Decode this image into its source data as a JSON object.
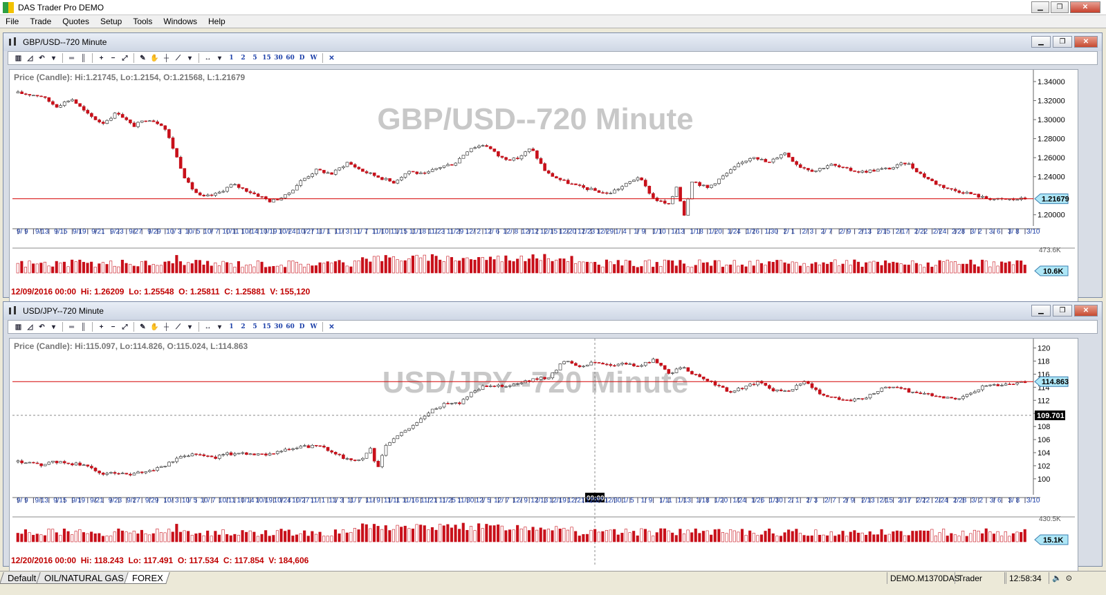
{
  "app": {
    "title": "DAS Trader Pro DEMO"
  },
  "menu": [
    "File",
    "Trade",
    "Quotes",
    "Setup",
    "Tools",
    "Windows",
    "Help"
  ],
  "toolbar": {
    "periods": [
      "1",
      "2",
      "5",
      "15",
      "30",
      "60",
      "D",
      "W"
    ]
  },
  "windows": [
    {
      "title": "GBP/USD--720 Minute",
      "watermark": "GBP/USD--720 Minute",
      "info": "Price (Candle): Hi:1.21745, Lo:1.2154, O:1.21568, L:1.21679",
      "status": "12/09/2016 00:00  Hi: 1.26209  Lo: 1.25548  O: 1.25811  C: 1.25881  V: 155,120",
      "y_ticks": [
        "1.34000",
        "1.32000",
        "1.30000",
        "1.28000",
        "1.26000",
        "1.24000",
        "1.20000"
      ],
      "y_tick_values": [
        1.34,
        1.32,
        1.3,
        1.28,
        1.26,
        1.24,
        1.2
      ],
      "y_range": [
        1.194,
        1.348
      ],
      "current_price": "1.21679",
      "current_value": 1.21679,
      "volume_max": "473.6K",
      "volume_current": "10.6K",
      "x_labels": [
        "9/ 9",
        "9/13",
        "9/15",
        "9/19",
        "9/21",
        "9/23",
        "9/27",
        "9/29",
        "10/ 3",
        "10/ 5",
        "10/ 7",
        "10/11",
        "10/14",
        "10/19",
        "10/24",
        "10/27",
        "11/ 1",
        "11/ 3",
        "11/ 7",
        "11/10",
        "11/15",
        "11/18",
        "11/23",
        "11/29",
        "12/ 2",
        "12/ 6",
        "12/ 8",
        "12/12",
        "12/15",
        "12/20",
        "12/23",
        "12/29",
        "1/ 4",
        "1/ 9",
        "1/10",
        "1/13",
        "1/18",
        "1/20",
        "1/24",
        "1/26",
        "1/30",
        "2/ 1",
        "2/ 3",
        "2/ 7",
        "2/ 9",
        "2/13",
        "2/15",
        "2/17",
        "2/22",
        "2/24",
        "2/28",
        "3/ 2",
        "3/ 6",
        "3/ 8",
        "3/10"
      ],
      "close_path": [
        [
          0,
          1.328
        ],
        [
          6,
          1.325
        ],
        [
          10,
          1.314
        ],
        [
          14,
          1.322
        ],
        [
          18,
          1.306
        ],
        [
          22,
          1.296
        ],
        [
          26,
          1.308
        ],
        [
          30,
          1.293
        ],
        [
          34,
          1.301
        ],
        [
          38,
          1.294
        ],
        [
          40,
          1.275
        ],
        [
          42,
          1.255
        ],
        [
          44,
          1.235
        ],
        [
          46,
          1.225
        ],
        [
          48,
          1.218
        ],
        [
          52,
          1.222
        ],
        [
          56,
          1.232
        ],
        [
          60,
          1.225
        ],
        [
          64,
          1.218
        ],
        [
          66,
          1.214
        ],
        [
          70,
          1.22
        ],
        [
          74,
          1.236
        ],
        [
          78,
          1.247
        ],
        [
          82,
          1.243
        ],
        [
          86,
          1.255
        ],
        [
          90,
          1.246
        ],
        [
          94,
          1.24
        ],
        [
          98,
          1.234
        ],
        [
          102,
          1.246
        ],
        [
          106,
          1.242
        ],
        [
          110,
          1.25
        ],
        [
          114,
          1.254
        ],
        [
          118,
          1.27
        ],
        [
          122,
          1.274
        ],
        [
          126,
          1.26
        ],
        [
          130,
          1.258
        ],
        [
          134,
          1.27
        ],
        [
          138,
          1.244
        ],
        [
          142,
          1.236
        ],
        [
          146,
          1.23
        ],
        [
          150,
          1.226
        ],
        [
          154,
          1.222
        ],
        [
          158,
          1.23
        ],
        [
          162,
          1.24
        ],
        [
          166,
          1.217
        ],
        [
          170,
          1.21
        ],
        [
          172,
          1.23
        ],
        [
          174,
          1.2
        ],
        [
          176,
          1.236
        ],
        [
          180,
          1.228
        ],
        [
          184,
          1.24
        ],
        [
          188,
          1.252
        ],
        [
          192,
          1.262
        ],
        [
          196,
          1.254
        ],
        [
          200,
          1.266
        ],
        [
          204,
          1.251
        ],
        [
          208,
          1.246
        ],
        [
          212,
          1.253
        ],
        [
          216,
          1.248
        ],
        [
          220,
          1.245
        ],
        [
          224,
          1.247
        ],
        [
          228,
          1.249
        ],
        [
          232,
          1.255
        ],
        [
          236,
          1.242
        ],
        [
          240,
          1.232
        ],
        [
          244,
          1.226
        ],
        [
          248,
          1.223
        ],
        [
          252,
          1.218
        ],
        [
          256,
          1.216
        ],
        [
          260,
          1.216
        ],
        [
          263,
          1.217
        ]
      ]
    },
    {
      "title": "USD/JPY--720 Minute",
      "watermark": "USD/JPY--720 Minute",
      "info": "Price (Candle): Hi:115.097, Lo:114.826, O:115.024, L:114.863",
      "status": "12/20/2016 00:00  Hi: 118.243  Lo: 117.491  O: 117.534  C: 117.854  V: 184,606",
      "y_ticks": [
        "120",
        "118",
        "116",
        "114",
        "112",
        "110",
        "108",
        "106",
        "104",
        "102",
        "100"
      ],
      "y_tick_values": [
        120,
        118,
        116,
        114,
        112,
        110,
        108,
        106,
        104,
        102,
        100
      ],
      "y_range": [
        98.4,
        120.8
      ],
      "current_price": "114.863",
      "current_value": 114.863,
      "crosshair_price": "109.701",
      "crosshair_value": 109.701,
      "crosshair_time": "00:00",
      "volume_max": "430.5K",
      "volume_current": "15.1K",
      "x_labels": [
        "9/ 9",
        "9/13",
        "9/15",
        "9/19",
        "9/21",
        "9/23",
        "9/27",
        "9/29",
        "10/ 3",
        "10/ 5",
        "10/ 7",
        "10/11",
        "10/14",
        "10/19",
        "10/24",
        "10/27",
        "11/ 1",
        "11/ 3",
        "11/ 7",
        "11/ 9",
        "11/11",
        "11/16",
        "11/21",
        "11/25",
        "11/30",
        "12/ 5",
        "12/ 7",
        "12/ 9",
        "12/13",
        "12/19",
        "12/21",
        "12/27",
        "12/30",
        "1/ 5",
        "1/ 9",
        "1/11",
        "1/13",
        "1/18",
        "1/20",
        "1/24",
        "1/26",
        "1/30",
        "2/ 1",
        "2/ 3",
        "2/ 7",
        "2/ 9",
        "2/13",
        "2/15",
        "2/17",
        "2/22",
        "2/24",
        "2/28",
        "3/ 2",
        "3/ 6",
        "3/ 8",
        "3/10"
      ],
      "close_path": [
        [
          0,
          102.6
        ],
        [
          6,
          102.1
        ],
        [
          10,
          102.6
        ],
        [
          16,
          102.2
        ],
        [
          20,
          101.7
        ],
        [
          22,
          100.6
        ],
        [
          26,
          101.0
        ],
        [
          30,
          100.6
        ],
        [
          36,
          101.4
        ],
        [
          40,
          102.2
        ],
        [
          44,
          103.6
        ],
        [
          48,
          103.9
        ],
        [
          52,
          103.2
        ],
        [
          56,
          103.8
        ],
        [
          60,
          104.0
        ],
        [
          64,
          103.6
        ],
        [
          68,
          104.0
        ],
        [
          72,
          104.4
        ],
        [
          76,
          104.9
        ],
        [
          80,
          105.0
        ],
        [
          84,
          104.2
        ],
        [
          88,
          102.9
        ],
        [
          92,
          103.0
        ],
        [
          94,
          104.8
        ],
        [
          96,
          101.2
        ],
        [
          98,
          105.0
        ],
        [
          102,
          106.8
        ],
        [
          106,
          108.4
        ],
        [
          110,
          110.2
        ],
        [
          114,
          111.6
        ],
        [
          118,
          111.6
        ],
        [
          122,
          113.6
        ],
        [
          126,
          114.4
        ],
        [
          130,
          114.0
        ],
        [
          134,
          114.6
        ],
        [
          138,
          115.2
        ],
        [
          142,
          115.6
        ],
        [
          146,
          118.2
        ],
        [
          150,
          117.2
        ],
        [
          154,
          117.8
        ],
        [
          158,
          117.4
        ],
        [
          162,
          117.6
        ],
        [
          166,
          117.2
        ],
        [
          170,
          118.2
        ],
        [
          174,
          116.2
        ],
        [
          178,
          117.0
        ],
        [
          182,
          115.4
        ],
        [
          186,
          114.6
        ],
        [
          190,
          113.2
        ],
        [
          194,
          114.0
        ],
        [
          198,
          114.8
        ],
        [
          202,
          113.4
        ],
        [
          206,
          113.6
        ],
        [
          210,
          114.8
        ],
        [
          214,
          113.2
        ],
        [
          218,
          112.4
        ],
        [
          222,
          112.0
        ],
        [
          226,
          112.2
        ],
        [
          230,
          113.6
        ],
        [
          234,
          114.2
        ],
        [
          238,
          113.4
        ],
        [
          242,
          113.0
        ],
        [
          246,
          112.6
        ],
        [
          250,
          112.2
        ],
        [
          254,
          112.8
        ],
        [
          258,
          114.2
        ],
        [
          262,
          114.4
        ],
        [
          266,
          114.6
        ],
        [
          269,
          114.9
        ]
      ]
    }
  ],
  "tabs": [
    {
      "label": "Default",
      "active": false
    },
    {
      "label": "OIL/NATURAL GAS",
      "active": false
    },
    {
      "label": "FOREX",
      "active": true
    }
  ],
  "statusbar": {
    "account": "DEMO.M1370DAS",
    "role": "Trader",
    "time": "12:58:34"
  },
  "colors": {
    "up_candle": "#ffffff",
    "down_candle": "#c8101a",
    "price_line": "#d40000",
    "axis_label_bg": "#aee7f7",
    "status_text": "#c00000",
    "watermark": "#c8c8c8"
  }
}
